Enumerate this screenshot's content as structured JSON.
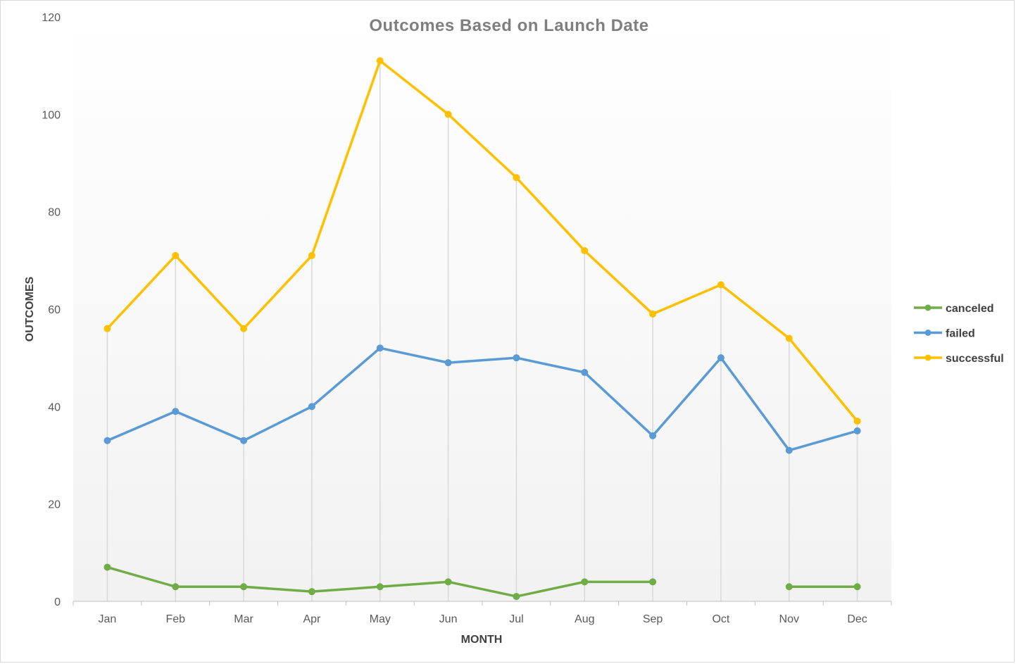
{
  "chart_data": {
    "type": "line",
    "title": "Outcomes Based on Launch Date",
    "xlabel": "MONTH",
    "ylabel": "OUTCOMES",
    "categories": [
      "Jan",
      "Feb",
      "Mar",
      "Apr",
      "May",
      "Jun",
      "Jul",
      "Aug",
      "Sep",
      "Oct",
      "Nov",
      "Dec"
    ],
    "ylim": [
      0,
      120
    ],
    "yticks": [
      0,
      20,
      40,
      60,
      80,
      100,
      120
    ],
    "grid": "vertical drop lines",
    "legend_position": "right",
    "series": [
      {
        "name": "canceled",
        "color": "#70ad47",
        "values": [
          7,
          3,
          3,
          2,
          3,
          4,
          1,
          4,
          4,
          null,
          3,
          3
        ]
      },
      {
        "name": "failed",
        "color": "#5b9bd5",
        "values": [
          33,
          39,
          33,
          40,
          52,
          49,
          50,
          47,
          34,
          50,
          31,
          35
        ]
      },
      {
        "name": "successful",
        "color": "#ffc000",
        "values": [
          56,
          71,
          56,
          71,
          111,
          100,
          87,
          72,
          59,
          65,
          54,
          37
        ]
      }
    ]
  }
}
